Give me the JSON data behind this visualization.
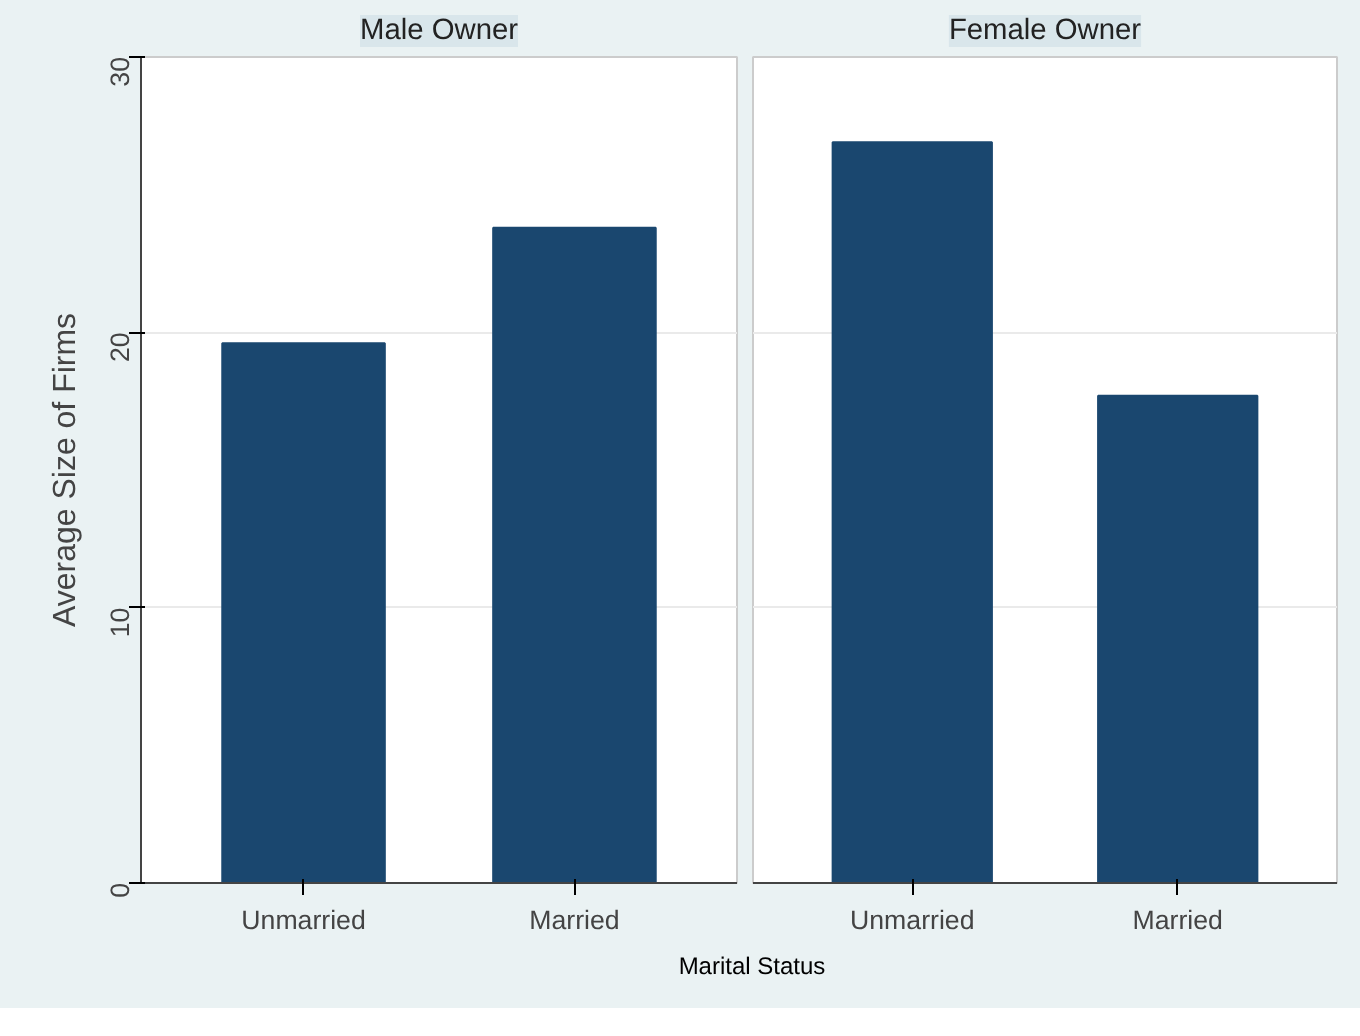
{
  "chart_data": [
    {
      "type": "bar",
      "title": "Male Owner",
      "categories": [
        "Unmarried",
        "Married"
      ],
      "values": [
        19.6,
        23.8
      ],
      "color": "#1a476f",
      "ylim": [
        0,
        30
      ],
      "yticks": [
        0,
        10,
        20,
        30
      ],
      "ylabel": "Average Size of Firms",
      "xlabel": "Marital Status",
      "grid": "y"
    },
    {
      "type": "bar",
      "title": "Female Owner",
      "categories": [
        "Unmarried",
        "Married"
      ],
      "values": [
        26.9,
        17.7
      ],
      "color": "#1a476f",
      "ylim": [
        0,
        30
      ],
      "yticks": [
        0,
        10,
        20,
        30
      ],
      "grid": "y",
      "tick_labels": "x"
    }
  ]
}
